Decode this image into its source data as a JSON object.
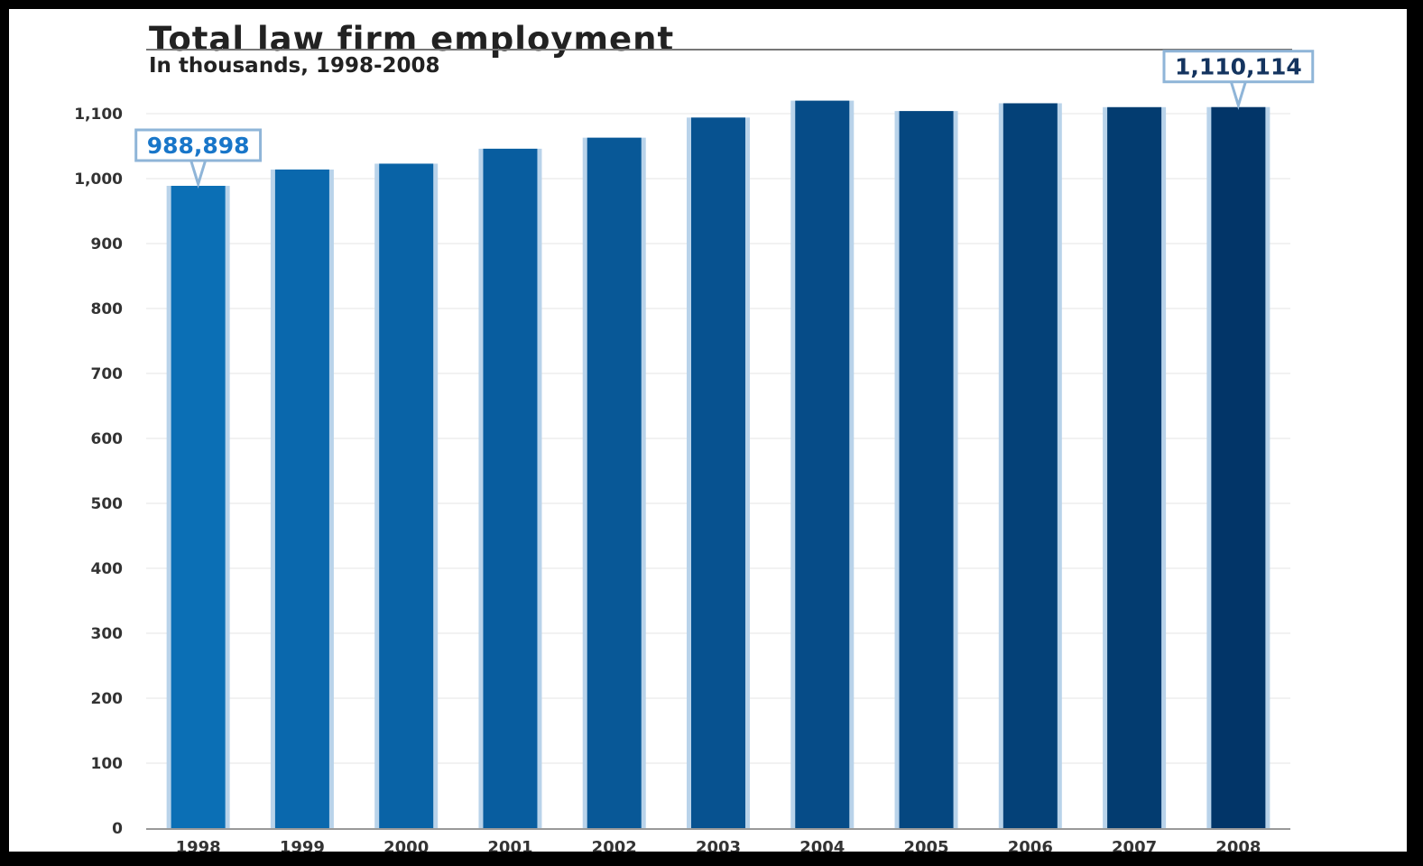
{
  "chart_data": {
    "type": "bar",
    "title": "Total law firm employment",
    "subtitle": "In thousands, 1998-2008",
    "xlabel": "",
    "ylabel": "",
    "categories": [
      "1998",
      "1999",
      "2000",
      "2001",
      "2002",
      "2003",
      "2004",
      "2005",
      "2006",
      "2007",
      "2008"
    ],
    "values": [
      988.9,
      1014,
      1023,
      1046,
      1063,
      1094,
      1120,
      1104,
      1116,
      1110,
      1110.1
    ],
    "ylim": [
      0,
      1100
    ],
    "yticks": [
      0,
      100,
      200,
      300,
      400,
      500,
      600,
      700,
      800,
      900,
      1000,
      1100
    ],
    "ytick_labels": [
      "0",
      "100",
      "200",
      "300",
      "400",
      "500",
      "600",
      "700",
      "800",
      "900",
      "1,000",
      "1,100"
    ],
    "grid": true,
    "bar_colors": [
      "#0b6fb5",
      "#0a68ad",
      "#0963a6",
      "#085d9f",
      "#085897",
      "#075290",
      "#064c88",
      "#054780",
      "#044178",
      "#033c70",
      "#023568"
    ],
    "annotations": [
      {
        "category": "1998",
        "text": "988,898",
        "color": "#1876c9"
      },
      {
        "category": "2008",
        "text": "1,110,114",
        "color": "#14345f"
      }
    ]
  }
}
